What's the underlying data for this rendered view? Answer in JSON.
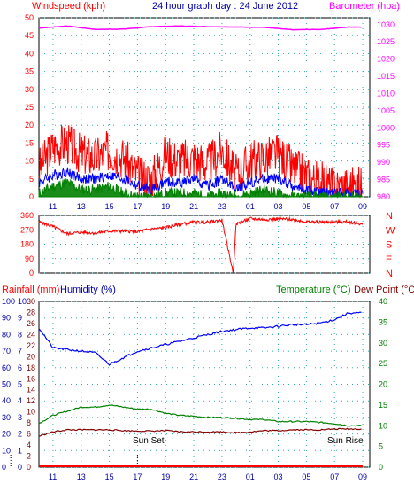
{
  "header": {
    "left_label": "Windspeed (kph)",
    "title": "24 hour graph day : 24 June 2012",
    "right_label": "Barometer (hpa)"
  },
  "lower_header": {
    "rainfall_label": "Rainfall (mm)",
    "humidity_label": "Humidity (%)",
    "temperature_label": "Temperature (°C)",
    "dewpoint_label": "Dew Point (°C)"
  },
  "annotations": {
    "sunset": "Sun Set",
    "sunrise": "Sun Rise"
  },
  "colors": {
    "windspeed": "#ff0000",
    "gust_avg": "#0000ff",
    "wind_low": "#008000",
    "barometer": "#ff00ff",
    "direction": "#ff0000",
    "humidity": "#0000ff",
    "temperature": "#008000",
    "dewpoint": "#800000",
    "rainfall": "#ff0000",
    "axis_blue": "#0000aa",
    "axis_red": "#ff0000",
    "axis_green": "#008000"
  },
  "chart_data": [
    {
      "type": "line",
      "title": "24 hour graph day : 24 June 2012",
      "x_ticks": [
        "11",
        "13",
        "15",
        "17",
        "19",
        "21",
        "23",
        "01",
        "03",
        "05",
        "07",
        "09"
      ],
      "y_left": {
        "label": "Windspeed (kph)",
        "ticks": [
          0,
          5,
          10,
          15,
          20,
          25,
          30,
          35,
          40,
          45,
          50
        ],
        "range": [
          0,
          50
        ]
      },
      "y_right": {
        "label": "Barometer (hpa)",
        "ticks": [
          980,
          985,
          990,
          995,
          1000,
          1005,
          1010,
          1015,
          1020,
          1025,
          1030
        ],
        "range": [
          980,
          1032
        ]
      },
      "series": [
        {
          "key": "windspeed",
          "x": [
            10,
            11,
            12,
            13,
            14,
            15,
            16,
            17,
            18,
            19,
            20,
            21,
            22,
            23,
            24,
            25,
            26,
            27,
            28,
            29,
            30,
            31,
            32,
            33
          ],
          "values": [
            8,
            14,
            15,
            12,
            11,
            13,
            11,
            6,
            5,
            12,
            10,
            11,
            9,
            13,
            6,
            10,
            11,
            12,
            8,
            6,
            4,
            3,
            3,
            3
          ]
        },
        {
          "key": "gust_avg",
          "x": [
            10,
            11,
            12,
            13,
            14,
            15,
            16,
            17,
            18,
            19,
            20,
            21,
            22,
            23,
            24,
            25,
            26,
            27,
            28,
            29,
            30,
            31,
            32,
            33
          ],
          "values": [
            4,
            6,
            7,
            5,
            5,
            6,
            5,
            3,
            2,
            4,
            4,
            5,
            3,
            5,
            2,
            4,
            5,
            5,
            3,
            2,
            1,
            1,
            1,
            1
          ]
        },
        {
          "key": "wind_low",
          "x": [
            10,
            11,
            12,
            13,
            14,
            15,
            16,
            17,
            18,
            19,
            20,
            21,
            22,
            23,
            24,
            25,
            26,
            27,
            28,
            29,
            30,
            31,
            32,
            33
          ],
          "values": [
            1,
            3,
            4,
            2,
            2,
            3,
            1,
            0,
            0,
            1,
            1,
            1,
            0,
            1,
            0,
            1,
            2,
            1,
            0,
            0,
            0,
            0,
            0,
            0
          ]
        },
        {
          "key": "barometer",
          "axis": "right",
          "x": [
            10,
            12,
            14,
            16,
            18,
            20,
            22,
            24,
            26,
            28,
            30,
            32,
            33
          ],
          "values": [
            1029.0,
            1029.6,
            1028.6,
            1028.7,
            1029.4,
            1029.6,
            1029.4,
            1029.3,
            1029.2,
            1028.5,
            1028.6,
            1029.3,
            1029.3
          ]
        }
      ]
    },
    {
      "type": "line",
      "y_left": {
        "ticks": [
          0,
          90,
          180,
          270,
          360
        ],
        "range": [
          0,
          360
        ]
      },
      "y_right": {
        "ticks": [
          "N",
          "W",
          "S",
          "E",
          "N"
        ]
      },
      "series": [
        {
          "key": "direction",
          "x": [
            10,
            11,
            12,
            13,
            14,
            15,
            16,
            17,
            18,
            19,
            20,
            21,
            22,
            23,
            23.8,
            24,
            25,
            26,
            27,
            28,
            29,
            30,
            31,
            32,
            33
          ],
          "values": [
            320,
            290,
            245,
            255,
            250,
            262,
            262,
            258,
            275,
            283,
            305,
            318,
            318,
            330,
            0,
            305,
            340,
            335,
            338,
            335,
            320,
            320,
            318,
            320,
            305
          ]
        }
      ]
    },
    {
      "type": "line",
      "y_rainfall": {
        "label": "Rainfall (mm)",
        "ticks": [
          0,
          1,
          2,
          3,
          4,
          5,
          6,
          7,
          8,
          9,
          10
        ],
        "range": [
          0,
          10
        ]
      },
      "y_humidity": {
        "label": "Humidity (%)",
        "ticks": [
          0,
          10,
          20,
          30,
          40,
          50,
          60,
          70,
          80,
          90,
          100
        ],
        "range": [
          0,
          100
        ]
      },
      "y_temp_left": {
        "ticks": [
          0,
          2,
          4,
          6,
          8,
          10,
          12,
          14,
          16,
          18,
          20,
          22,
          24,
          26,
          28,
          30
        ],
        "range": [
          0,
          30
        ]
      },
      "y_right": {
        "label": "Temperature (°C)",
        "ticks": [
          0,
          5,
          10,
          15,
          20,
          25,
          30,
          35,
          40
        ],
        "range": [
          0,
          40
        ]
      },
      "series": [
        {
          "key": "humidity",
          "axis": "humidity",
          "x": [
            10,
            11,
            12,
            13,
            14,
            15,
            16,
            17,
            18,
            19,
            20,
            21,
            22,
            23,
            24,
            25,
            26,
            27,
            28,
            29,
            30,
            31,
            32,
            33
          ],
          "values": [
            84,
            72,
            71,
            70,
            69,
            62,
            66,
            70,
            72,
            74,
            76,
            78,
            80,
            82,
            83,
            84,
            84,
            85,
            86,
            86,
            87,
            89,
            93,
            93
          ]
        },
        {
          "key": "temperature",
          "axis": "right",
          "x": [
            10,
            11,
            12,
            13,
            14,
            15,
            16,
            17,
            18,
            19,
            20,
            21,
            22,
            23,
            24,
            25,
            26,
            27,
            28,
            29,
            30,
            31,
            32,
            33
          ],
          "values": [
            10.5,
            12.5,
            13.5,
            14.5,
            14.5,
            15,
            14.5,
            14,
            14,
            13,
            12.5,
            12.3,
            12,
            12,
            11.8,
            11.5,
            11.5,
            11,
            11,
            11,
            10.8,
            10.5,
            10,
            10
          ]
        },
        {
          "key": "dewpoint",
          "axis": "right",
          "x": [
            10,
            11,
            12,
            13,
            14,
            15,
            16,
            17,
            18,
            19,
            20,
            21,
            22,
            23,
            24,
            25,
            26,
            27,
            28,
            29,
            30,
            31,
            32,
            33
          ],
          "values": [
            7.5,
            8.5,
            9,
            9,
            9,
            9,
            8.8,
            8.7,
            8.7,
            8.8,
            8.5,
            8.5,
            8.5,
            8.5,
            8.3,
            8.5,
            8.8,
            8.8,
            9,
            9,
            9,
            9.2,
            9.2,
            9.2
          ]
        },
        {
          "key": "rainfall",
          "axis": "rainfall",
          "x": [
            10,
            33
          ],
          "values": [
            0,
            0
          ]
        }
      ]
    }
  ]
}
